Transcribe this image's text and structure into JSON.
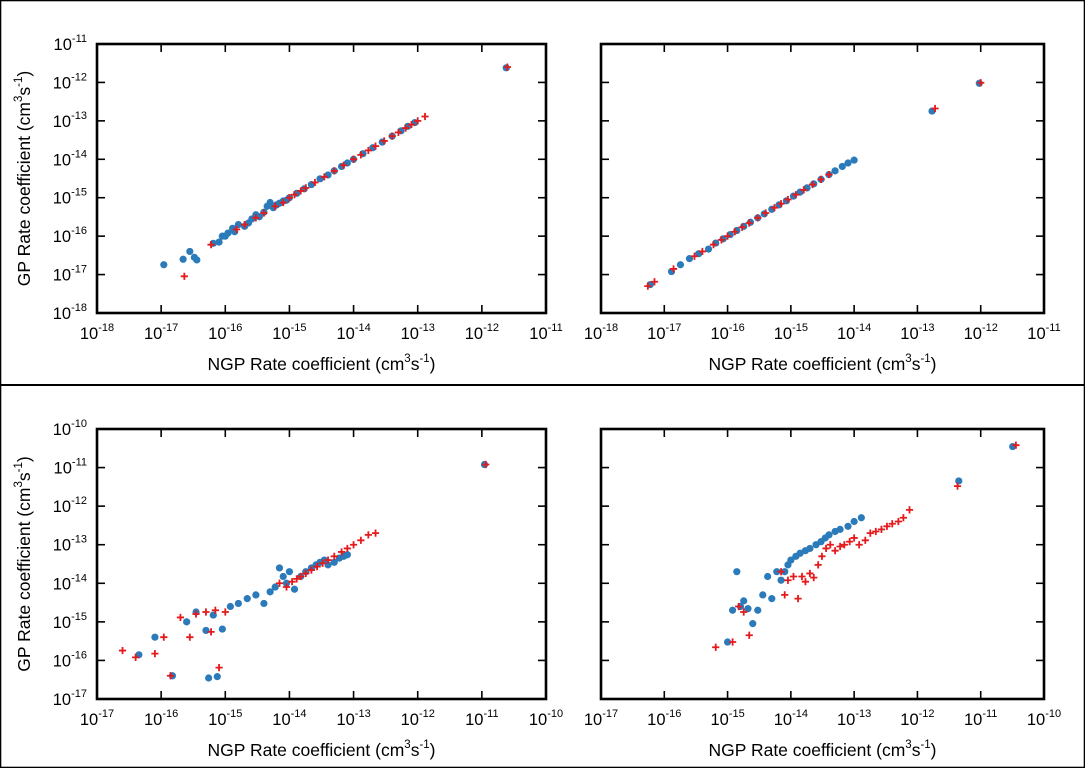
{
  "colors": {
    "series_a": "#2b7bba",
    "series_b": "#e41a1c",
    "axis": "#000000"
  },
  "chart_data": [
    {
      "type": "scatter",
      "xlabel": "NGP Rate coefficient (cm3s-1)",
      "ylabel": "GP Rate coefficient (cm3s-1)",
      "log_scale": true,
      "xlim": [
        "1e-18",
        "1e-11"
      ],
      "ylim": [
        "1e-18",
        "1e-11"
      ],
      "x_tick_labels": [
        "10-18",
        "10-17",
        "10-16",
        "10-15",
        "10-14",
        "10-13",
        "10-12",
        "10-11"
      ],
      "y_tick_labels": [
        "10-18",
        "10-17",
        "10-16",
        "10-15",
        "10-14",
        "10-13",
        "10-12",
        "10-11"
      ],
      "series": [
        {
          "marker": "circle",
          "color": "#2b7bba",
          "x": [
            1.1e-17,
            2.2e-17,
            2.8e-17,
            3.3e-17,
            3.6e-17,
            6.5e-17,
            8e-17,
            9e-17,
            1e-16,
            1.1e-16,
            1.3e-16,
            1.4e-16,
            1.6e-16,
            2e-16,
            2.3e-16,
            2.6e-16,
            3e-16,
            3.4e-16,
            4e-16,
            4.5e-16,
            5e-16,
            5.6e-16,
            6.3e-16,
            7e-16,
            8e-16,
            9e-16,
            1e-15,
            1.3e-15,
            1.7e-15,
            2.2e-15,
            3e-15,
            4e-15,
            5e-15,
            6.5e-15,
            8e-15,
            1e-14,
            1.4e-14,
            2e-14,
            2.8e-14,
            4e-14,
            5.5e-14,
            7e-14,
            9e-14,
            2.4e-12
          ],
          "y": [
            1.8e-17,
            2.5e-17,
            4e-17,
            2.8e-17,
            2.4e-17,
            6.5e-17,
            7e-17,
            1e-16,
            1e-16,
            1.2e-16,
            1.6e-16,
            1.3e-16,
            2e-16,
            1.8e-16,
            2.2e-16,
            2.8e-16,
            3.6e-16,
            3.2e-16,
            4.2e-16,
            6e-16,
            7.5e-16,
            5.5e-16,
            6.5e-16,
            7.2e-16,
            8.2e-16,
            8.6e-16,
            1e-15,
            1.3e-15,
            1.7e-15,
            2.2e-15,
            3.1e-15,
            3.9e-15,
            5e-15,
            6.5e-15,
            8e-15,
            1e-14,
            1.4e-14,
            2e-14,
            2.8e-14,
            4e-14,
            5.5e-14,
            7.2e-14,
            9e-14,
            2.4e-12
          ]
        },
        {
          "marker": "plus",
          "color": "#e41a1c",
          "x": [
            2.3e-17,
            6e-17,
            1.5e-16,
            2e-16,
            3e-16,
            4e-16,
            6e-16,
            8e-16,
            1e-15,
            1.2e-15,
            1.5e-15,
            1.8e-15,
            2.5e-15,
            3.5e-15,
            5e-15,
            7e-15,
            1e-14,
            1.3e-14,
            1.7e-14,
            2.2e-14,
            3e-14,
            4e-14,
            5e-14,
            6.5e-14,
            8e-14,
            1e-13,
            1.3e-13,
            2.5e-12
          ],
          "y": [
            9e-18,
            6e-17,
            1.5e-16,
            2e-16,
            3e-16,
            4e-16,
            6e-16,
            7.5e-16,
            1e-15,
            1.2e-15,
            1.5e-15,
            1.8e-15,
            2.5e-15,
            3.5e-15,
            5e-15,
            7e-15,
            1e-14,
            1.3e-14,
            1.7e-14,
            2.2e-14,
            3e-14,
            4e-14,
            5e-14,
            6.5e-14,
            8e-14,
            1e-13,
            1.3e-13,
            2.5e-12
          ]
        }
      ]
    },
    {
      "type": "scatter",
      "xlabel": "NGP Rate coefficient (cm3s-1)",
      "ylabel": "",
      "log_scale": true,
      "xlim": [
        "1e-18",
        "1e-11"
      ],
      "ylim": [
        "1e-18",
        "1e-11"
      ],
      "x_tick_labels": [
        "10-18",
        "10-17",
        "10-16",
        "10-15",
        "10-14",
        "10-13",
        "10-12",
        "10-11"
      ],
      "y_tick_labels": [],
      "series": [
        {
          "marker": "circle",
          "color": "#2b7bba",
          "x": [
            6e-18,
            1.3e-17,
            1.8e-17,
            2.5e-17,
            3.5e-17,
            5e-17,
            6.5e-17,
            8.5e-17,
            1.1e-16,
            1.4e-16,
            1.8e-16,
            2.3e-16,
            3e-16,
            3.8e-16,
            5e-16,
            6.5e-16,
            8.5e-16,
            1.1e-15,
            1.4e-15,
            1.8e-15,
            2.3e-15,
            3e-15,
            4e-15,
            5e-15,
            6.5e-15,
            8e-15,
            1e-14,
            1.7e-13,
            9.5e-13
          ],
          "y": [
            5.5e-18,
            1.2e-17,
            1.8e-17,
            2.6e-17,
            3.5e-17,
            4.6e-17,
            6.6e-17,
            8.5e-17,
            1.1e-16,
            1.4e-16,
            1.8e-16,
            2.3e-16,
            3e-16,
            3.8e-16,
            5e-16,
            6.5e-16,
            8.3e-16,
            1.1e-15,
            1.4e-15,
            1.8e-15,
            2.3e-15,
            3e-15,
            4e-15,
            5e-15,
            6.5e-15,
            8e-15,
            9.5e-15,
            1.8e-13,
            9.5e-13
          ]
        },
        {
          "marker": "plus",
          "color": "#e41a1c",
          "x": [
            5.5e-18,
            7e-18,
            1.4e-17,
            3e-17,
            4e-17,
            6e-17,
            8e-17,
            1e-16,
            1.3e-16,
            1.7e-16,
            2.2e-16,
            3e-16,
            4e-16,
            5.5e-16,
            7e-16,
            9e-16,
            1.2e-15,
            1.6e-15,
            2.2e-15,
            3e-15,
            4e-15,
            1.9e-13,
            1e-12
          ],
          "y": [
            5e-18,
            6.5e-18,
            1.4e-17,
            3e-17,
            4e-17,
            6e-17,
            8e-17,
            1e-16,
            1.3e-16,
            1.7e-16,
            2.2e-16,
            3e-16,
            4e-16,
            5.5e-16,
            7e-16,
            9e-16,
            1.2e-15,
            1.6e-15,
            2.2e-15,
            3e-15,
            4e-15,
            2.1e-13,
            9.8e-13
          ]
        }
      ]
    },
    {
      "type": "scatter",
      "xlabel": "NGP Rate coefficient (cm3s-1)",
      "ylabel": "GP Rate coefficient (cm3s-1)",
      "log_scale": true,
      "xlim": [
        "1e-17",
        "1e-10"
      ],
      "ylim": [
        "1e-17",
        "1e-10"
      ],
      "x_tick_labels": [
        "10-17",
        "10-16",
        "10-15",
        "10-14",
        "10-13",
        "10-12",
        "10-11",
        "10-10"
      ],
      "y_tick_labels": [
        "10-17",
        "10-16",
        "10-15",
        "10-14",
        "10-13",
        "10-12",
        "10-11",
        "10-10"
      ],
      "series": [
        {
          "marker": "circle",
          "color": "#2b7bba",
          "x": [
            4.5e-17,
            8e-17,
            1.5e-16,
            2.5e-16,
            3.5e-16,
            5e-16,
            5.5e-16,
            6.5e-16,
            7.5e-16,
            9e-16,
            1.2e-15,
            1.6e-15,
            2.2e-15,
            3e-15,
            4e-15,
            5e-15,
            6e-15,
            7e-15,
            8e-15,
            9e-15,
            1e-14,
            1.2e-14,
            1.5e-14,
            1.8e-14,
            2.2e-14,
            2.6e-14,
            3e-14,
            3.5e-14,
            4e-14,
            5e-14,
            6e-14,
            7e-14,
            8e-14,
            1.1e-11
          ],
          "y": [
            1.4e-16,
            4e-16,
            4e-17,
            1e-15,
            1.8e-15,
            6e-16,
            3.5e-17,
            1.5e-15,
            3.8e-17,
            6.5e-16,
            2.5e-15,
            3e-15,
            4e-15,
            5e-15,
            3e-15,
            6e-15,
            8e-15,
            2.5e-14,
            1.5e-14,
            1e-14,
            2e-14,
            7e-15,
            1.5e-14,
            2e-14,
            2.5e-14,
            3e-14,
            3.5e-14,
            4e-14,
            3e-14,
            3.5e-14,
            4.5e-14,
            5e-14,
            5.5e-14,
            1.2e-11
          ]
        },
        {
          "marker": "plus",
          "color": "#e41a1c",
          "x": [
            2.5e-17,
            4e-17,
            8e-17,
            1.1e-16,
            1.4e-16,
            2e-16,
            2.8e-16,
            3.5e-16,
            5e-16,
            6e-16,
            7e-16,
            8e-16,
            1e-15,
            7e-15,
            9e-15,
            1.1e-14,
            1.3e-14,
            1.5e-14,
            1.8e-14,
            2.2e-14,
            2.7e-14,
            3.3e-14,
            4e-14,
            5e-14,
            6.5e-14,
            8e-14,
            1e-13,
            1.3e-13,
            1.7e-13,
            2.2e-13,
            1.15e-11
          ],
          "y": [
            1.8e-16,
            1.2e-16,
            1.5e-16,
            4e-16,
            4e-17,
            1.3e-15,
            4e-16,
            1.6e-15,
            1.8e-15,
            5.5e-16,
            2e-15,
            6.5e-17,
            1.8e-15,
            1e-14,
            8e-15,
            1.1e-14,
            1.3e-14,
            1.5e-14,
            1.8e-14,
            2.2e-14,
            2.7e-14,
            3.3e-14,
            4e-14,
            5e-14,
            6.5e-14,
            8e-14,
            1e-13,
            1.3e-13,
            1.8e-13,
            2e-13,
            1.2e-11
          ]
        }
      ]
    },
    {
      "type": "scatter",
      "xlabel": "NGP Rate coefficient (cm3s-1)",
      "ylabel": "",
      "log_scale": true,
      "xlim": [
        "1e-17",
        "1e-10"
      ],
      "ylim": [
        "1e-17",
        "1e-10"
      ],
      "x_tick_labels": [
        "10-17",
        "10-16",
        "10-15",
        "10-14",
        "10-13",
        "10-12",
        "10-11",
        "10-10"
      ],
      "y_tick_labels": [],
      "series": [
        {
          "marker": "circle",
          "color": "#2b7bba",
          "x": [
            1e-15,
            1.2e-15,
            1.4e-15,
            1.6e-15,
            1.8e-15,
            2.1e-15,
            2.5e-15,
            3e-15,
            3.6e-15,
            4.3e-15,
            5e-15,
            6e-15,
            7e-15,
            8e-15,
            9e-15,
            1e-14,
            1.2e-14,
            1.4e-14,
            1.7e-14,
            2e-14,
            2.5e-14,
            3e-14,
            3.5e-14,
            4e-14,
            5e-14,
            6e-14,
            8e-14,
            1e-13,
            1.3e-13,
            4.5e-12,
            3.2e-11
          ],
          "y": [
            3e-16,
            2e-15,
            2e-14,
            2.5e-15,
            3.5e-15,
            2.2e-15,
            9e-16,
            2e-15,
            5e-15,
            1.5e-14,
            4e-15,
            2e-14,
            1.2e-14,
            2e-14,
            3e-14,
            4e-14,
            5e-14,
            6e-14,
            7e-14,
            8e-14,
            1e-13,
            1.2e-13,
            1.5e-13,
            1.8e-13,
            2.2e-13,
            2.5e-13,
            3e-13,
            4e-13,
            5e-13,
            4.5e-12,
            3.5e-11
          ]
        },
        {
          "marker": "plus",
          "color": "#e41a1c",
          "x": [
            6.5e-16,
            1.2e-15,
            1.5e-15,
            1.8e-15,
            2.2e-15,
            7e-15,
            8e-15,
            9e-15,
            1.1e-14,
            1.3e-14,
            1.5e-14,
            1.7e-14,
            2e-14,
            2.3e-14,
            2.7e-14,
            3.1e-14,
            3.6e-14,
            4.2e-14,
            5e-14,
            6e-14,
            7e-14,
            8.5e-14,
            1e-13,
            1.2e-13,
            1.5e-13,
            1.8e-13,
            2.2e-13,
            2.7e-13,
            3.3e-13,
            4e-13,
            5e-13,
            6e-13,
            7.5e-13,
            4.3e-12,
            3.6e-11
          ],
          "y": [
            2.2e-16,
            3e-16,
            2.5e-15,
            1.8e-15,
            4.5e-16,
            2e-14,
            5e-15,
            1.2e-14,
            1.5e-14,
            4e-15,
            1.5e-14,
            1.1e-14,
            1.8e-14,
            1.4e-14,
            3e-14,
            5e-14,
            8e-14,
            1e-13,
            7e-14,
            9e-14,
            1e-13,
            1.2e-13,
            1.5e-13,
            1e-13,
            1.3e-13,
            2e-13,
            2.2e-13,
            2.5e-13,
            3e-13,
            3.5e-13,
            4e-13,
            5e-13,
            8e-13,
            3.3e-12,
            3.8e-11
          ]
        }
      ]
    }
  ]
}
